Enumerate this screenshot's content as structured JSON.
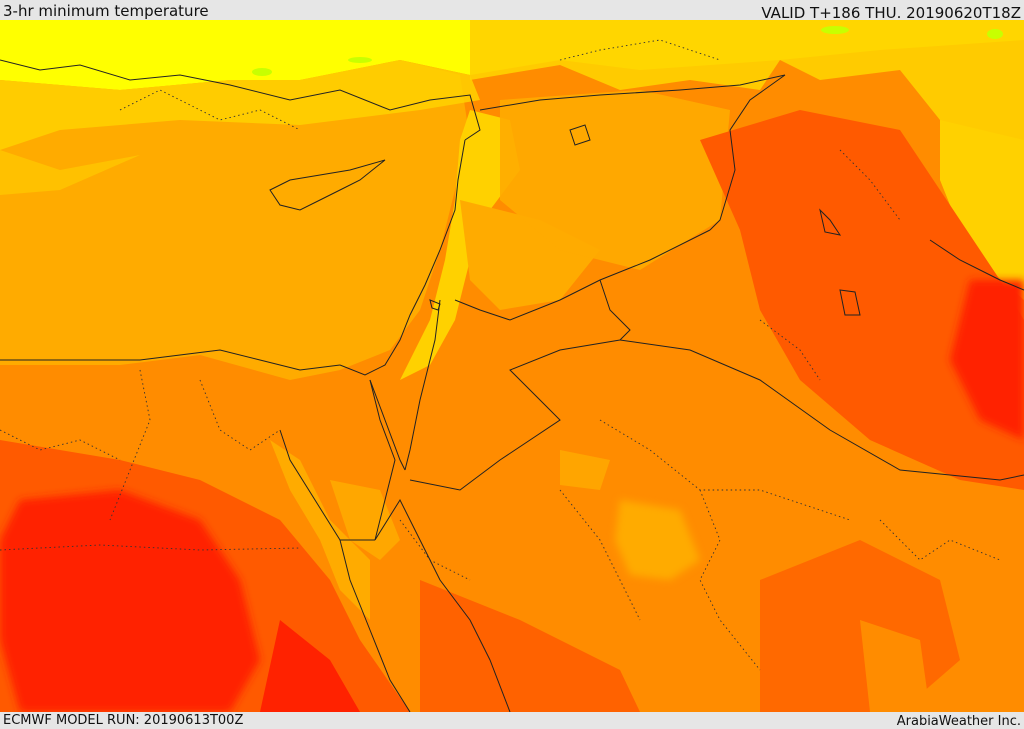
{
  "header": {
    "title": "3-hr minimum temperature",
    "valid": "VALID T+186 THU. 20190620T18Z"
  },
  "footer": {
    "model_run": "ECMWF MODEL RUN: 20190613T00Z",
    "brand": "ArabiaWeather Inc."
  },
  "palette": {
    "yellow": "#ffff00",
    "light_orange": "#ffd100",
    "amber": "#ffab00",
    "orange": "#ff8c00",
    "dark_orange": "#ff5a00",
    "red": "#ff2200",
    "green_tint": "#c8ff00"
  }
}
